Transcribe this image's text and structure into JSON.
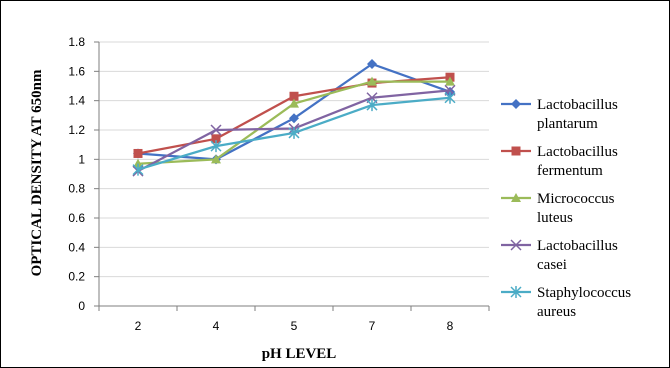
{
  "chart_data": {
    "type": "line",
    "categories": [
      "2",
      "4",
      "5",
      "7",
      "8"
    ],
    "xlabel": "pH LEVEL",
    "ylabel": "OPTICAL DENSITY AT 650nm",
    "ylim": [
      0,
      1.8
    ],
    "yticks": [
      "0",
      "0.2",
      "0.4",
      "0.6",
      "0.8",
      "1",
      "1.2",
      "1.4",
      "1.6",
      "1.8"
    ],
    "grid": true,
    "legend_position": "right",
    "series": [
      {
        "name": "Lactobacillus plantarum",
        "name_lines": [
          "Lactobacillus",
          "plantarum"
        ],
        "values": [
          1.04,
          1.0,
          1.28,
          1.65,
          1.46
        ],
        "color": "#4472C4",
        "marker": "diamond"
      },
      {
        "name": "Lactobacillus fermentum",
        "name_lines": [
          "Lactobacillus",
          "fermentum"
        ],
        "values": [
          1.04,
          1.14,
          1.43,
          1.52,
          1.56
        ],
        "color": "#C0504D",
        "marker": "square"
      },
      {
        "name": "Micrococcus luteus",
        "name_lines": [
          "Micrococcus",
          "luteus"
        ],
        "values": [
          0.97,
          1.0,
          1.38,
          1.53,
          1.53
        ],
        "color": "#9BBB59",
        "marker": "triangle"
      },
      {
        "name": "Lactobacillus casei",
        "name_lines": [
          "Lactobacillus",
          "casei"
        ],
        "values": [
          0.92,
          1.2,
          1.21,
          1.42,
          1.47
        ],
        "color": "#8064A2",
        "marker": "x"
      },
      {
        "name": "Staphylococcus aureus",
        "name_lines": [
          "Staphylococcus",
          "aureus"
        ],
        "values": [
          0.93,
          1.09,
          1.18,
          1.37,
          1.42
        ],
        "color": "#4BACC6",
        "marker": "star"
      }
    ]
  }
}
